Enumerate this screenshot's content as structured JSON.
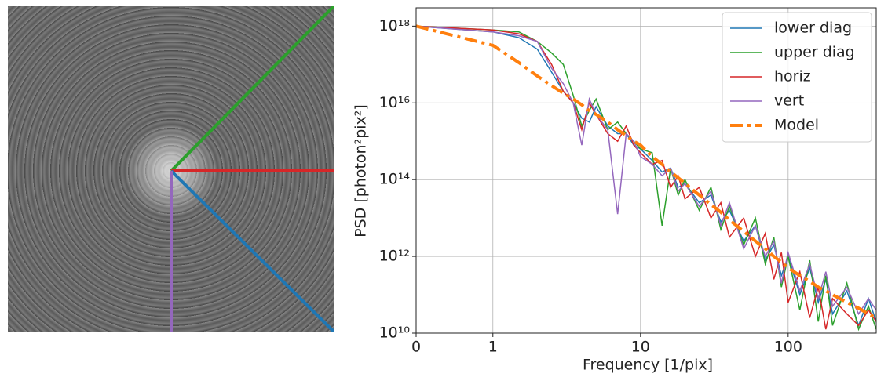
{
  "chart_data": {
    "type": "line",
    "xlabel": "Frequency [1/pix]",
    "ylabel": "PSD [photon²pix²]",
    "xscale": "symlog",
    "yscale": "log",
    "grid": true,
    "legend": "upper right",
    "xlim": [
      0,
      395
    ],
    "xticks": [
      0,
      1,
      10,
      100
    ],
    "ylim": [
      10000000000.0,
      3e+18
    ],
    "yticks": [
      {
        "value": 10000000000.0,
        "label": "10¹⁰"
      },
      {
        "value": 1000000000000.0,
        "label": "10¹²"
      },
      {
        "value": 100000000000000.0,
        "label": "10¹⁴"
      },
      {
        "value": 1e+16,
        "label": "10¹⁶"
      },
      {
        "value": 1e+18,
        "label": "10¹⁸"
      }
    ],
    "x": [
      0,
      1,
      1.5,
      2,
      2.5,
      3,
      3.5,
      4,
      4.5,
      5,
      6,
      7,
      8,
      9,
      10,
      12,
      14,
      16,
      18,
      20,
      25,
      30,
      35,
      40,
      50,
      60,
      70,
      80,
      90,
      100,
      120,
      140,
      160,
      180,
      200,
      250,
      300,
      350,
      395
    ],
    "series": [
      {
        "name": "lower diag",
        "color": "#1f77b4",
        "values": [
          1e+18,
          7.08e+17,
          5.01e+17,
          2.51e+17,
          6.31e+16,
          2e+16,
          1e+16,
          3980000000000000.0,
          3160000000000000.0,
          7940000000000000.0,
          2510000000000000.0,
          1580000000000000.0,
          1580000000000000.0,
          794000000000000.0,
          631000000000000.0,
          316000000000000.0,
          158000000000000.0,
          200000000000000.0,
          63100000000000.0,
          79400000000000.0,
          25100000000000.0,
          39800000000000.0,
          7940000000000.0,
          15800000000000.0,
          2510000000000.0,
          6310000000000.0,
          794000000000.0,
          2000000000000.0,
          316000000000.0,
          1000000000000.0,
          100000000000.0,
          501000000000.0,
          63100000000.0,
          251000000000.0,
          31600000000.0,
          126000000000.0,
          15800000000.0,
          79400000000.0,
          20000000000.0
        ]
      },
      {
        "name": "upper diag",
        "color": "#2ca02c",
        "values": [
          1e+18,
          7.94e+17,
          7.08e+17,
          3.98e+17,
          2e+17,
          1e+17,
          1.58e+16,
          2510000000000000.0,
          6310000000000000.0,
          1.26e+16,
          2000000000000000.0,
          3160000000000000.0,
          1580000000000000.0,
          1000000000000000.0,
          631000000000000.0,
          501000000000000.0,
          6310000000000.0,
          200000000000000.0,
          39800000000000.0,
          100000000000000.0,
          15800000000000.0,
          63100000000000.0,
          5010000000000.0,
          20000000000000.0,
          2000000000000.0,
          10000000000000.0,
          631000000000.0,
          3160000000000.0,
          158000000000.0,
          1000000000000.0,
          39800000000.0,
          794000000000.0,
          20000000000.0,
          316000000000.0,
          15800000000.0,
          200000000000.0,
          12600000000.0,
          50100000000.0,
          12600000000.0
        ]
      },
      {
        "name": "horiz",
        "color": "#d62728",
        "values": [
          1e+18,
          7.94e+17,
          6.31e+17,
          3.98e+17,
          1e+17,
          2e+16,
          1e+16,
          2000000000000000.0,
          1e+16,
          5010000000000000.0,
          1580000000000000.0,
          1000000000000000.0,
          2510000000000000.0,
          794000000000000.0,
          501000000000000.0,
          251000000000000.0,
          316000000000000.0,
          63100000000000.0,
          126000000000000.0,
          31600000000000.0,
          63100000000000.0,
          10000000000000.0,
          25100000000000.0,
          3160000000000.0,
          10000000000000.0,
          1000000000000.0,
          3980000000000.0,
          251000000000.0,
          1260000000000.0,
          63100000000.0,
          398000000000.0,
          25100000000.0,
          158000000000.0,
          12600000000.0,
          79400000000.0,
          31600000000.0,
          15800000000.0,
          39800000000.0,
          20000000000.0
        ]
      },
      {
        "name": "vert",
        "color": "#9467bd",
        "values": [
          1e+18,
          7.08e+17,
          5.62e+17,
          3.98e+17,
          7.94e+16,
          3.16e+16,
          1e+16,
          794000000000000.0,
          1.26e+16,
          5010000000000000.0,
          2000000000000000.0,
          12600000000000.0,
          1580000000000000.0,
          1000000000000000.0,
          398000000000000.0,
          251000000000000.0,
          126000000000000.0,
          200000000000000.0,
          50100000000000.0,
          79400000000000.0,
          20000000000000.0,
          50100000000000.0,
          6310000000000.0,
          25100000000000.0,
          1580000000000.0,
          6310000000000.0,
          1000000000000.0,
          2510000000000.0,
          200000000000.0,
          1260000000000.0,
          126000000000.0,
          631000000000.0,
          79400000000.0,
          398000000000.0,
          50100000000.0,
          158000000000.0,
          31600000000.0,
          79400000000.0,
          39800000000.0
        ]
      },
      {
        "name": "Model",
        "color": "#ff7f0e",
        "dash": "dashdot",
        "values": [
          1e+18,
          3.16e+17,
          1.12e+17,
          5.01e+16,
          2.82e+16,
          1.78e+16,
          1.26e+16,
          8910000000000000.0,
          6310000000000000.0,
          5010000000000000.0,
          3160000000000000.0,
          2000000000000000.0,
          1410000000000000.0,
          1000000000000000.0,
          794000000000000.0,
          398000000000000.0,
          251000000000000.0,
          158000000000000.0,
          112000000000000.0,
          79400000000000.0,
          39800000000000.0,
          22400000000000.0,
          14100000000000.0,
          8910000000000.0,
          4470000000000.0,
          2510000000000.0,
          1580000000000.0,
          1000000000000.0,
          708000000000.0,
          501000000000.0,
          316000000000.0,
          224000000000.0,
          158000000000.0,
          126000000000.0,
          100000000000.0,
          63100000000.0,
          44700000000.0,
          31600000000.0,
          25100000000.0
        ]
      }
    ]
  }
}
